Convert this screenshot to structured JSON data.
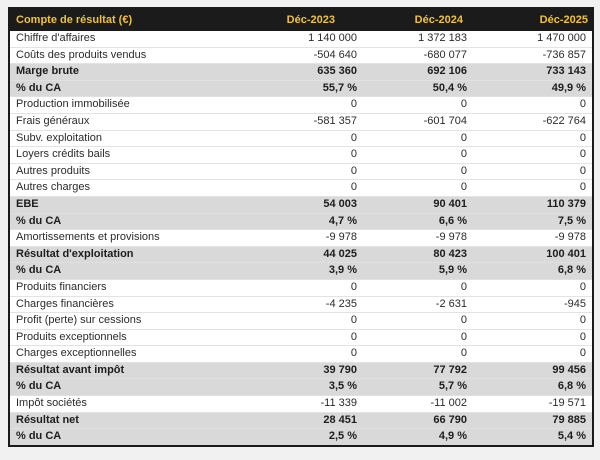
{
  "page": {
    "background": "#f1f1f1"
  },
  "theme": {
    "header_bg": "#1b1b1b",
    "header_text": "#f1c232",
    "highlight_row_bg": "#d9d9d9",
    "row_divider": "#e3e3e3",
    "outer_border": "#1b1b1b",
    "body_text": "#2b2b2b"
  },
  "table": {
    "title": "Compte de résultat (€)",
    "columns": [
      "Déc-2023",
      "Déc-2024",
      "Déc-2025"
    ],
    "rows": [
      {
        "label": "Chiffre d'affaires",
        "values": [
          "1 140 000",
          "1 372 183",
          "1 470 000"
        ],
        "highlight": false
      },
      {
        "label": "Coûts des produits vendus",
        "values": [
          "-504 640",
          "-680 077",
          "-736 857"
        ],
        "highlight": false
      },
      {
        "label": "Marge brute",
        "values": [
          "635 360",
          "692 106",
          "733 143"
        ],
        "highlight": true
      },
      {
        "label": "% du CA",
        "values": [
          "55,7 %",
          "50,4 %",
          "49,9 %"
        ],
        "highlight": true
      },
      {
        "label": "Production immobilisée",
        "values": [
          "0",
          "0",
          "0"
        ],
        "highlight": false
      },
      {
        "label": "Frais généraux",
        "values": [
          "-581 357",
          "-601 704",
          "-622 764"
        ],
        "highlight": false
      },
      {
        "label": "Subv. exploitation",
        "values": [
          "0",
          "0",
          "0"
        ],
        "highlight": false
      },
      {
        "label": "Loyers crédits bails",
        "values": [
          "0",
          "0",
          "0"
        ],
        "highlight": false
      },
      {
        "label": "Autres produits",
        "values": [
          "0",
          "0",
          "0"
        ],
        "highlight": false
      },
      {
        "label": "Autres charges",
        "values": [
          "0",
          "0",
          "0"
        ],
        "highlight": false
      },
      {
        "label": "EBE",
        "values": [
          "54 003",
          "90 401",
          "110 379"
        ],
        "highlight": true
      },
      {
        "label": "% du CA",
        "values": [
          "4,7 %",
          "6,6 %",
          "7,5 %"
        ],
        "highlight": true
      },
      {
        "label": "Amortissements et provisions",
        "values": [
          "-9 978",
          "-9 978",
          "-9 978"
        ],
        "highlight": false
      },
      {
        "label": "Résultat d'exploitation",
        "values": [
          "44 025",
          "80 423",
          "100 401"
        ],
        "highlight": true
      },
      {
        "label": "% du CA",
        "values": [
          "3,9 %",
          "5,9 %",
          "6,8 %"
        ],
        "highlight": true
      },
      {
        "label": "Produits financiers",
        "values": [
          "0",
          "0",
          "0"
        ],
        "highlight": false
      },
      {
        "label": "Charges financières",
        "values": [
          "-4 235",
          "-2 631",
          "-945"
        ],
        "highlight": false
      },
      {
        "label": "Profit (perte) sur cessions",
        "values": [
          "0",
          "0",
          "0"
        ],
        "highlight": false
      },
      {
        "label": "Produits exceptionnels",
        "values": [
          "0",
          "0",
          "0"
        ],
        "highlight": false
      },
      {
        "label": "Charges exceptionnelles",
        "values": [
          "0",
          "0",
          "0"
        ],
        "highlight": false
      },
      {
        "label": "Résultat avant impôt",
        "values": [
          "39 790",
          "77 792",
          "99 456"
        ],
        "highlight": true
      },
      {
        "label": "% du CA",
        "values": [
          "3,5 %",
          "5,7 %",
          "6,8 %"
        ],
        "highlight": true
      },
      {
        "label": "Impôt sociétés",
        "values": [
          "-11 339",
          "-11 002",
          "-19 571"
        ],
        "highlight": false
      },
      {
        "label": "Résultat net",
        "values": [
          "28 451",
          "66 790",
          "79 885"
        ],
        "highlight": true
      },
      {
        "label": "% du CA",
        "values": [
          "2,5 %",
          "4,9 %",
          "5,4 %"
        ],
        "highlight": true
      }
    ]
  },
  "chart_data": {
    "type": "table",
    "title": "Compte de résultat (€)",
    "columns": [
      "Déc-2023",
      "Déc-2024",
      "Déc-2025"
    ],
    "rows": [
      {
        "label": "Chiffre d'affaires",
        "values": [
          1140000,
          1372183,
          1470000
        ]
      },
      {
        "label": "Coûts des produits vendus",
        "values": [
          -504640,
          -680077,
          -736857
        ]
      },
      {
        "label": "Marge brute",
        "values": [
          635360,
          692106,
          733143
        ]
      },
      {
        "label": "% du CA (marge brute)",
        "values_pct": [
          55.7,
          50.4,
          49.9
        ]
      },
      {
        "label": "Production immobilisée",
        "values": [
          0,
          0,
          0
        ]
      },
      {
        "label": "Frais généraux",
        "values": [
          -581357,
          -601704,
          -622764
        ]
      },
      {
        "label": "Subv. exploitation",
        "values": [
          0,
          0,
          0
        ]
      },
      {
        "label": "Loyers crédits bails",
        "values": [
          0,
          0,
          0
        ]
      },
      {
        "label": "Autres produits",
        "values": [
          0,
          0,
          0
        ]
      },
      {
        "label": "Autres charges",
        "values": [
          0,
          0,
          0
        ]
      },
      {
        "label": "EBE",
        "values": [
          54003,
          90401,
          110379
        ]
      },
      {
        "label": "% du CA (EBE)",
        "values_pct": [
          4.7,
          6.6,
          7.5
        ]
      },
      {
        "label": "Amortissements et provisions",
        "values": [
          -9978,
          -9978,
          -9978
        ]
      },
      {
        "label": "Résultat d'exploitation",
        "values": [
          44025,
          80423,
          100401
        ]
      },
      {
        "label": "% du CA (résultat d'exploitation)",
        "values_pct": [
          3.9,
          5.9,
          6.8
        ]
      },
      {
        "label": "Produits financiers",
        "values": [
          0,
          0,
          0
        ]
      },
      {
        "label": "Charges financières",
        "values": [
          -4235,
          -2631,
          -945
        ]
      },
      {
        "label": "Profit (perte) sur cessions",
        "values": [
          0,
          0,
          0
        ]
      },
      {
        "label": "Produits exceptionnels",
        "values": [
          0,
          0,
          0
        ]
      },
      {
        "label": "Charges exceptionnelles",
        "values": [
          0,
          0,
          0
        ]
      },
      {
        "label": "Résultat avant impôt",
        "values": [
          39790,
          77792,
          99456
        ]
      },
      {
        "label": "% du CA (résultat avant impôt)",
        "values_pct": [
          3.5,
          5.7,
          6.8
        ]
      },
      {
        "label": "Impôt sociétés",
        "values": [
          -11339,
          -11002,
          -19571
        ]
      },
      {
        "label": "Résultat net",
        "values": [
          28451,
          66790,
          79885
        ]
      },
      {
        "label": "% du CA (résultat net)",
        "values_pct": [
          2.5,
          4.9,
          5.4
        ]
      }
    ]
  }
}
